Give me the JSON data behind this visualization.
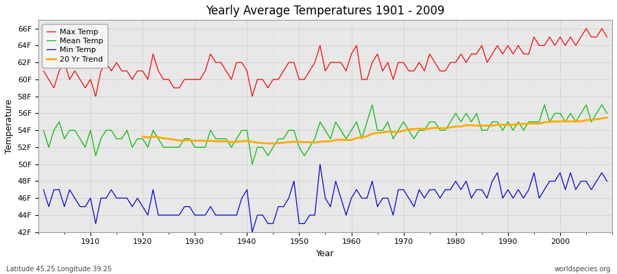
{
  "title": "Yearly Average Temperatures 1901 - 2009",
  "xlabel": "Year",
  "ylabel": "Temperature",
  "start_year": 1901,
  "end_year": 2009,
  "ylim": [
    42,
    67
  ],
  "yticks": [
    42,
    44,
    46,
    48,
    50,
    52,
    54,
    56,
    58,
    60,
    62,
    64,
    66
  ],
  "ytick_labels": [
    "42F",
    "44F",
    "46F",
    "48F",
    "50F",
    "52F",
    "54F",
    "56F",
    "58F",
    "60F",
    "62F",
    "64F",
    "66F"
  ],
  "colors": {
    "max": "#ff0000",
    "mean": "#00bb00",
    "min": "#0000dd",
    "trend": "#ffaa00",
    "fig_bg": "#ffffff",
    "plot_bg": "#e8e8e8"
  },
  "legend_labels": [
    "Max Temp",
    "Mean Temp",
    "Min Temp",
    "20 Yr Trend"
  ],
  "bottom_left": "Latitude 45.25 Longitude 39.25",
  "bottom_right": "worldspecies.org",
  "max_temps": [
    61,
    60,
    59,
    61,
    62,
    60,
    61,
    60,
    59,
    60,
    58,
    61,
    62,
    61,
    62,
    61,
    61,
    60,
    61,
    61,
    60,
    63,
    61,
    60,
    60,
    59,
    59,
    60,
    60,
    60,
    60,
    61,
    63,
    62,
    62,
    61,
    60,
    62,
    62,
    61,
    58,
    60,
    60,
    59,
    60,
    60,
    61,
    62,
    62,
    60,
    60,
    61,
    62,
    64,
    61,
    62,
    62,
    62,
    61,
    63,
    64,
    60,
    60,
    62,
    63,
    61,
    62,
    60,
    62,
    62,
    61,
    61,
    62,
    61,
    63,
    62,
    61,
    61,
    62,
    62,
    63,
    62,
    63,
    63,
    64,
    62,
    63,
    64,
    63,
    64,
    63,
    64,
    63,
    63,
    65,
    64,
    64,
    65,
    64,
    65,
    64,
    65,
    64,
    65,
    66,
    65,
    65,
    66,
    65
  ],
  "mean_temps": [
    54,
    52,
    54,
    55,
    53,
    54,
    54,
    53,
    52,
    54,
    51,
    53,
    54,
    54,
    53,
    53,
    54,
    52,
    53,
    53,
    52,
    54,
    53,
    52,
    52,
    52,
    52,
    53,
    53,
    52,
    52,
    52,
    54,
    53,
    53,
    53,
    52,
    53,
    54,
    54,
    50,
    52,
    52,
    51,
    52,
    53,
    53,
    54,
    54,
    52,
    51,
    52,
    53,
    55,
    54,
    53,
    55,
    54,
    53,
    54,
    55,
    53,
    55,
    57,
    54,
    54,
    55,
    53,
    54,
    55,
    54,
    53,
    54,
    54,
    55,
    55,
    54,
    54,
    55,
    56,
    55,
    56,
    55,
    56,
    54,
    54,
    55,
    55,
    54,
    55,
    54,
    55,
    54,
    55,
    55,
    55,
    57,
    55,
    56,
    56,
    55,
    56,
    55,
    56,
    57,
    55,
    56,
    57,
    56
  ],
  "min_temps": [
    47,
    45,
    47,
    47,
    45,
    47,
    46,
    45,
    45,
    46,
    43,
    46,
    46,
    47,
    46,
    46,
    46,
    45,
    46,
    45,
    44,
    47,
    44,
    44,
    44,
    44,
    44,
    45,
    45,
    44,
    44,
    44,
    45,
    44,
    44,
    44,
    44,
    44,
    46,
    47,
    42,
    44,
    44,
    43,
    43,
    45,
    45,
    46,
    48,
    43,
    43,
    44,
    44,
    50,
    46,
    45,
    48,
    46,
    44,
    46,
    47,
    46,
    46,
    48,
    45,
    46,
    46,
    44,
    47,
    47,
    46,
    45,
    47,
    46,
    47,
    47,
    46,
    47,
    47,
    48,
    47,
    48,
    46,
    47,
    47,
    46,
    48,
    49,
    46,
    47,
    46,
    47,
    46,
    47,
    49,
    46,
    47,
    48,
    48,
    49,
    47,
    49,
    47,
    48,
    48,
    47,
    48,
    49,
    48
  ],
  "grid_color": "#cccccc",
  "grid_linewidth": 0.5,
  "line_linewidth": 0.9,
  "trend_linewidth": 2.0,
  "title_fontsize": 12,
  "tick_fontsize": 8,
  "label_fontsize": 9,
  "legend_fontsize": 8
}
